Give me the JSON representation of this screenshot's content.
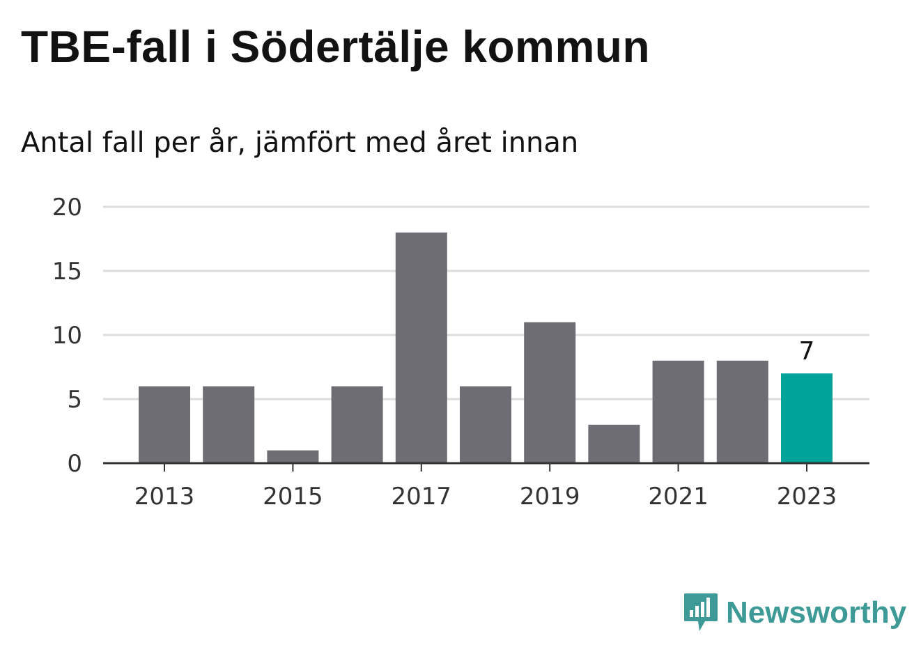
{
  "header": {
    "title": "TBE-fall i Södertälje kommun",
    "subtitle": "Antal fall per år, jämfört med året innan"
  },
  "chart_data": {
    "type": "bar",
    "categories": [
      "2013",
      "2014",
      "2015",
      "2016",
      "2017",
      "2018",
      "2019",
      "2020",
      "2021",
      "2022",
      "2023"
    ],
    "values": [
      6,
      6,
      1,
      6,
      18,
      6,
      11,
      3,
      8,
      8,
      7
    ],
    "x_tick_labels": [
      "2013",
      "2015",
      "2017",
      "2019",
      "2021",
      "2023"
    ],
    "y_ticks": [
      0,
      5,
      10,
      15,
      20
    ],
    "ylim": [
      0,
      20
    ],
    "grid": true,
    "highlight_category": "2023",
    "highlight_label": "7",
    "colors": {
      "bar": "#6e6d73",
      "highlight": "#00a39a",
      "grid": "#dddddd",
      "axis": "#333333"
    }
  },
  "branding": {
    "logo_text": "Newsworthy",
    "logo_icon": "bar-chart-speech-bubble-icon",
    "color": "#3d9a96"
  }
}
